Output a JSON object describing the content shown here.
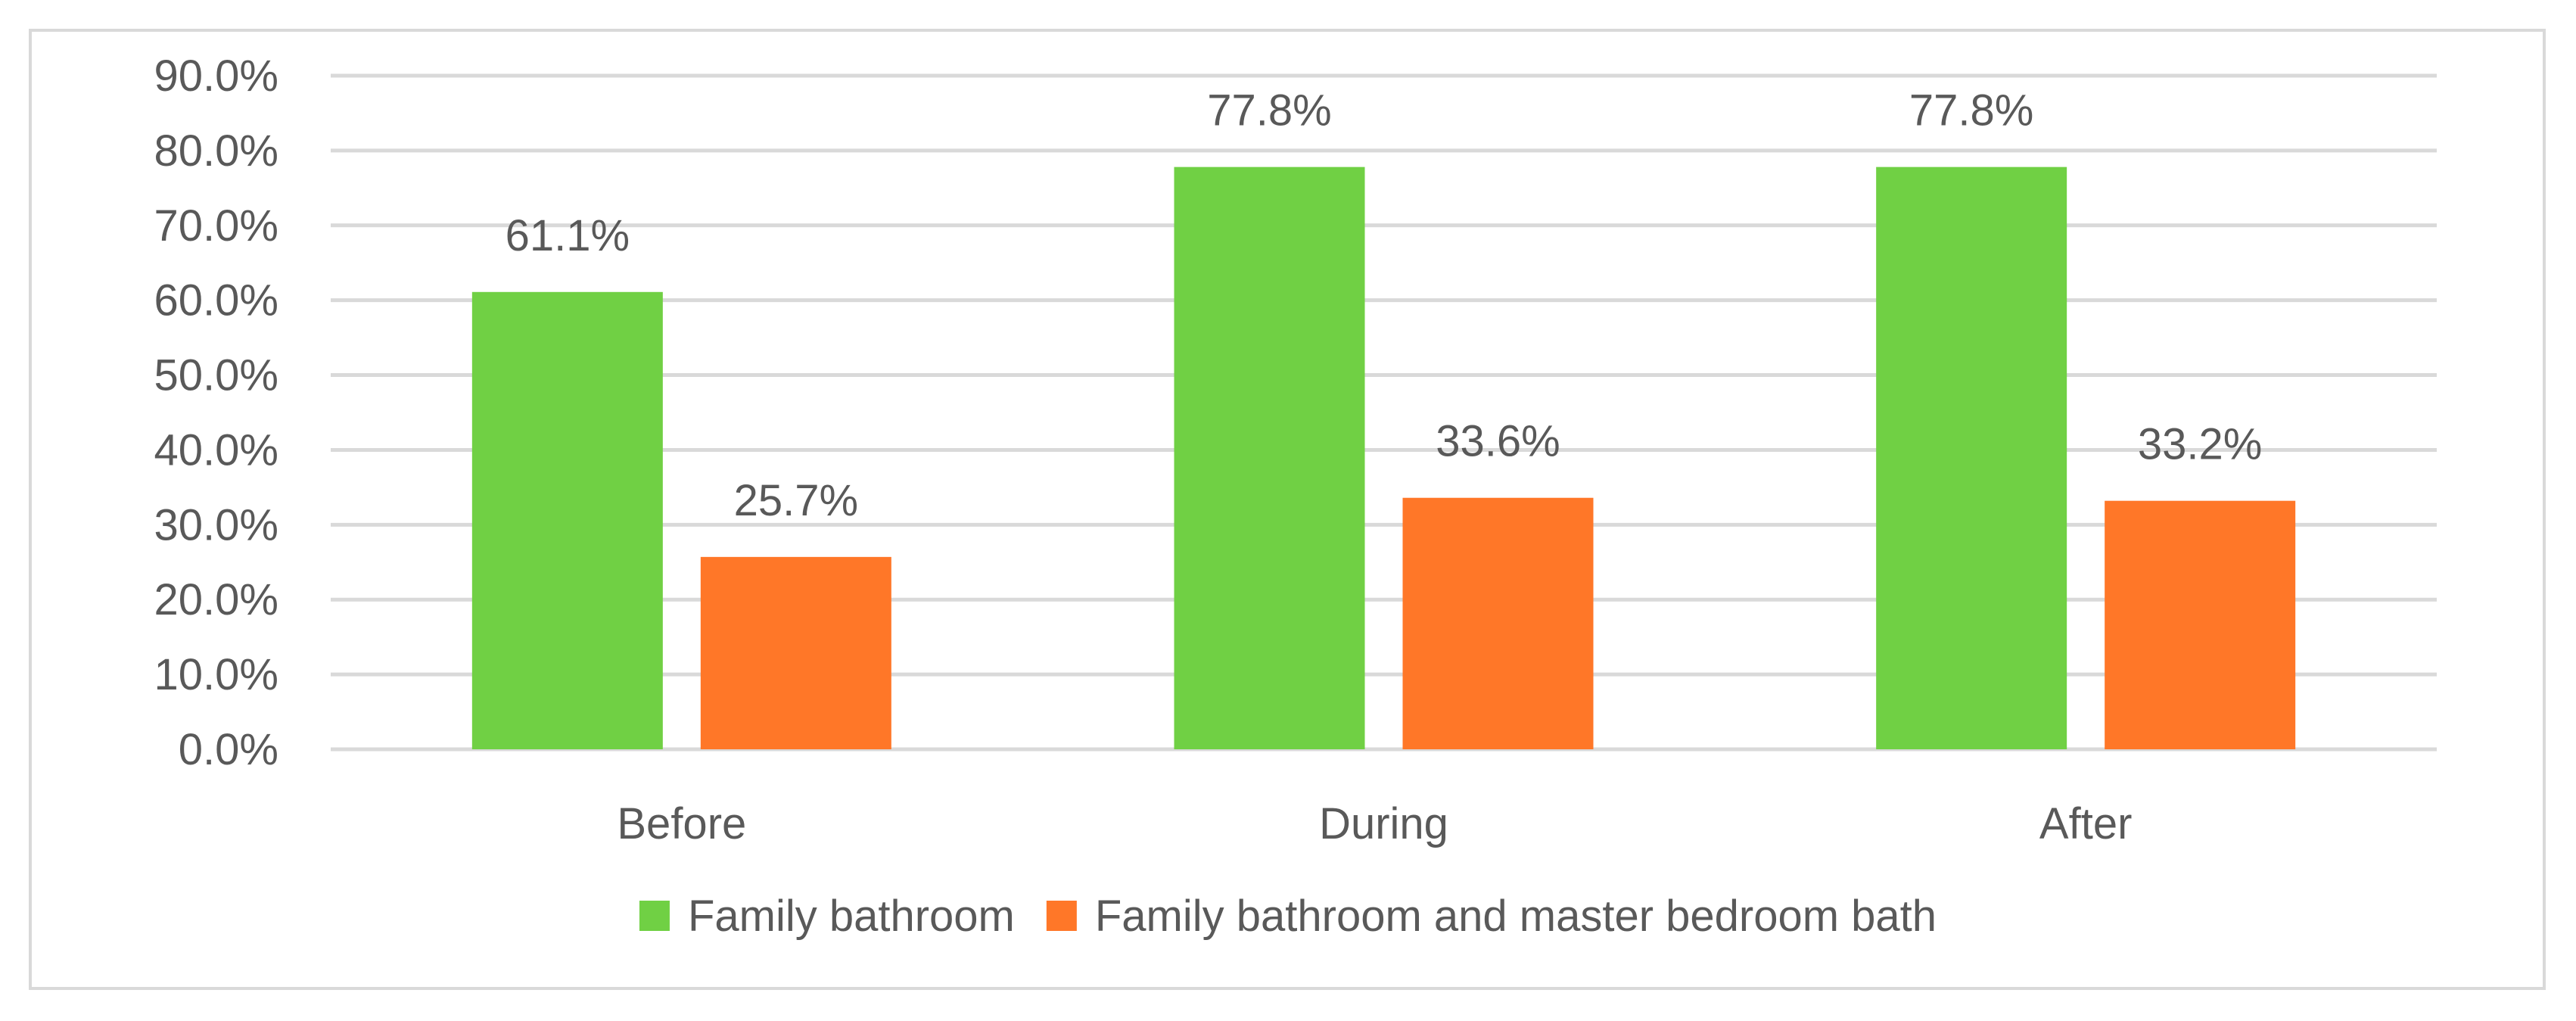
{
  "chart_data": {
    "type": "bar",
    "title": "",
    "xlabel": "",
    "ylabel": "",
    "categories": [
      "Before",
      "During",
      "After"
    ],
    "series": [
      {
        "name": "Family bathroom",
        "color": "#70d044",
        "values": [
          61.1,
          77.8,
          77.8
        ],
        "labels": [
          "61.1%",
          "77.8%",
          "77.8%"
        ]
      },
      {
        "name": "Family bathroom and master bedroom bath",
        "color": "#ff7728",
        "values": [
          25.7,
          33.6,
          33.2
        ],
        "labels": [
          "25.7%",
          "33.6%",
          "33.2%"
        ]
      }
    ],
    "ylim": [
      0,
      90
    ],
    "yticks": [
      0,
      10,
      20,
      30,
      40,
      50,
      60,
      70,
      80,
      90
    ],
    "ytick_labels": [
      "0.0%",
      "10.0%",
      "20.0%",
      "30.0%",
      "40.0%",
      "50.0%",
      "60.0%",
      "70.0%",
      "80.0%",
      "90.0%"
    ],
    "grid": true,
    "gridline_color": "#d9d9d9",
    "legend_position": "bottom"
  }
}
